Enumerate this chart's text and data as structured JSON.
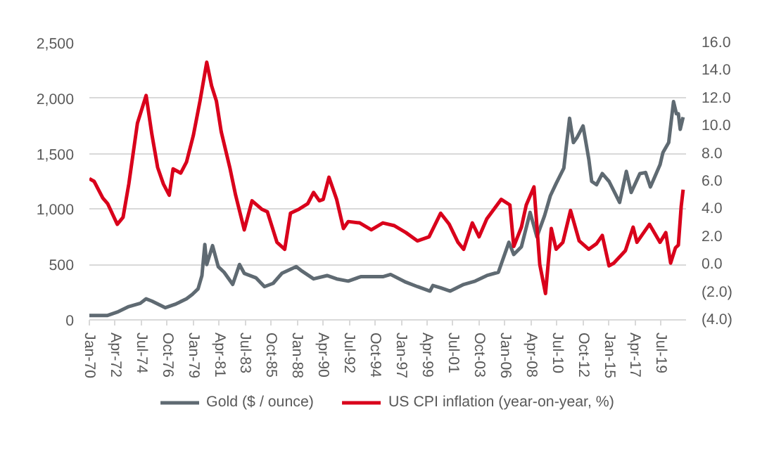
{
  "chart_data": {
    "type": "line",
    "legend": "bottom",
    "grid": "y",
    "line_style": "solid",
    "xlim": [
      "1970-01-01",
      "2021-09-01"
    ],
    "xticks": [
      {
        "value": "1970-01",
        "label": "Jan-70"
      },
      {
        "value": "1972-04",
        "label": "Apr-72"
      },
      {
        "value": "1974-07",
        "label": "Jul-74"
      },
      {
        "value": "1976-10",
        "label": "Oct-76"
      },
      {
        "value": "1979-01",
        "label": "Jan-79"
      },
      {
        "value": "1981-04",
        "label": "Apr-81"
      },
      {
        "value": "1983-07",
        "label": "Jul-83"
      },
      {
        "value": "1985-10",
        "label": "Oct-85"
      },
      {
        "value": "1988-01",
        "label": "Jan-88"
      },
      {
        "value": "1990-04",
        "label": "Apr-90"
      },
      {
        "value": "1992-07",
        "label": "Jul-92"
      },
      {
        "value": "1994-10",
        "label": "Oct-94"
      },
      {
        "value": "1997-01",
        "label": "Jan-97"
      },
      {
        "value": "1999-04",
        "label": "Apr-99"
      },
      {
        "value": "2001-07",
        "label": "Jul-01"
      },
      {
        "value": "2003-10",
        "label": "Oct-03"
      },
      {
        "value": "2006-01",
        "label": "Jan-06"
      },
      {
        "value": "2008-04",
        "label": "Apr-08"
      },
      {
        "value": "2010-07",
        "label": "Jul-10"
      },
      {
        "value": "2012-10",
        "label": "Oct-12"
      },
      {
        "value": "2015-01",
        "label": "Jan-15"
      },
      {
        "value": "2017-04",
        "label": "Apr-17"
      },
      {
        "value": "2019-07",
        "label": "Jul-19"
      }
    ],
    "ylim": [
      0,
      2500
    ],
    "yticks": [
      0,
      500,
      {
        "value": 1000,
        "label": "1,000"
      },
      {
        "value": 1500,
        "label": "1,500"
      },
      {
        "value": 2000,
        "label": "2,000"
      },
      {
        "value": 2500,
        "label": "2,500"
      }
    ],
    "y2lim": [
      -4,
      16
    ],
    "y2ticks": [
      {
        "value": -4,
        "label": "(4.0)"
      },
      {
        "value": -2,
        "label": "(2.0)"
      },
      {
        "value": 0,
        "label": "0.0"
      },
      {
        "value": 2,
        "label": "2.0"
      },
      {
        "value": 4,
        "label": "4.0"
      },
      {
        "value": 6,
        "label": "6.0"
      },
      {
        "value": 8,
        "label": "8.0"
      },
      {
        "value": 10,
        "label": "10.0"
      },
      {
        "value": 12,
        "label": "12.0"
      },
      {
        "value": 14,
        "label": "14.0"
      },
      {
        "value": 16,
        "label": "16.0"
      }
    ],
    "series": [
      {
        "name": "Gold ($ / ounce)",
        "color": "#5f6a72",
        "x": [
          "1970-01",
          "1971-08",
          "1972-06",
          "1973-06",
          "1974-06",
          "1974-12",
          "1975-06",
          "1976-08",
          "1977-06",
          "1978-06",
          "1978-12",
          "1979-06",
          "1979-10",
          "1980-01",
          "1980-03",
          "1980-09",
          "1981-03",
          "1981-09",
          "1982-06",
          "1983-01",
          "1983-06",
          "1984-06",
          "1985-03",
          "1985-12",
          "1986-09",
          "1987-12",
          "1988-06",
          "1989-06",
          "1990-08",
          "1991-06",
          "1992-06",
          "1993-07",
          "1994-06",
          "1995-06",
          "1996-02",
          "1997-06",
          "1998-06",
          "1999-07",
          "1999-10",
          "2000-06",
          "2001-04",
          "2002-06",
          "2003-06",
          "2004-06",
          "2005-06",
          "2006-05",
          "2006-10",
          "2007-06",
          "2008-03",
          "2008-10",
          "2009-06",
          "2009-12",
          "2010-06",
          "2011-02",
          "2011-08",
          "2011-12",
          "2012-04",
          "2012-10",
          "2013-04",
          "2013-07",
          "2013-12",
          "2014-06",
          "2015-01",
          "2015-12",
          "2016-07",
          "2016-12",
          "2017-09",
          "2018-03",
          "2018-08",
          "2019-06",
          "2019-09",
          "2020-03",
          "2020-08",
          "2020-11",
          "2021-01",
          "2021-03",
          "2021-06"
        ],
        "values": [
          40,
          40,
          70,
          120,
          150,
          190,
          170,
          110,
          140,
          190,
          230,
          280,
          400,
          680,
          500,
          670,
          480,
          430,
          320,
          500,
          420,
          380,
          300,
          330,
          420,
          480,
          440,
          370,
          400,
          370,
          350,
          390,
          390,
          390,
          410,
          340,
          300,
          260,
          310,
          290,
          260,
          320,
          350,
          400,
          430,
          700,
          590,
          660,
          970,
          750,
          940,
          1120,
          1230,
          1370,
          1820,
          1600,
          1650,
          1750,
          1450,
          1250,
          1220,
          1320,
          1250,
          1060,
          1340,
          1150,
          1320,
          1330,
          1200,
          1400,
          1510,
          1600,
          1970,
          1860,
          1860,
          1720,
          1830
        ]
      },
      {
        "name": "US CPI inflation (year-on-year, %)",
        "color": "#d9001b",
        "axis": "y2",
        "x": [
          "1970-01",
          "1970-06",
          "1971-03",
          "1971-08",
          "1972-06",
          "1972-12",
          "1973-06",
          "1974-03",
          "1974-12",
          "1975-06",
          "1975-12",
          "1976-06",
          "1976-12",
          "1977-04",
          "1977-12",
          "1978-06",
          "1979-01",
          "1979-08",
          "1980-03",
          "1980-08",
          "1981-01",
          "1981-06",
          "1982-03",
          "1982-09",
          "1983-06",
          "1984-02",
          "1984-12",
          "1985-06",
          "1986-04",
          "1986-12",
          "1987-06",
          "1988-03",
          "1988-12",
          "1989-06",
          "1989-12",
          "1990-04",
          "1990-10",
          "1991-06",
          "1992-01",
          "1992-06",
          "1993-06",
          "1994-06",
          "1995-06",
          "1996-06",
          "1997-06",
          "1998-06",
          "1999-06",
          "2000-06",
          "2001-03",
          "2001-12",
          "2002-06",
          "2003-03",
          "2003-10",
          "2004-06",
          "2005-09",
          "2006-06",
          "2006-10",
          "2007-06",
          "2007-11",
          "2008-07",
          "2009-01",
          "2009-07",
          "2010-01",
          "2010-06",
          "2011-01",
          "2011-09",
          "2012-06",
          "2013-04",
          "2013-12",
          "2014-06",
          "2015-01",
          "2015-06",
          "2016-06",
          "2017-02",
          "2017-06",
          "2018-07",
          "2019-06",
          "2019-12",
          "2020-05",
          "2020-10",
          "2021-01",
          "2021-04",
          "2021-06"
        ],
        "values": [
          6.2,
          6.0,
          4.8,
          4.4,
          2.9,
          3.4,
          5.8,
          10.2,
          12.2,
          9.4,
          7.0,
          5.8,
          5.0,
          6.9,
          6.6,
          7.4,
          9.3,
          11.8,
          14.6,
          12.9,
          11.8,
          9.6,
          7.0,
          5.0,
          2.5,
          4.6,
          4.0,
          3.8,
          1.6,
          1.1,
          3.7,
          4.0,
          4.4,
          5.2,
          4.6,
          4.7,
          6.3,
          4.7,
          2.6,
          3.1,
          3.0,
          2.5,
          3.0,
          2.8,
          2.3,
          1.7,
          2.0,
          3.7,
          2.9,
          1.6,
          1.1,
          3.0,
          2.0,
          3.3,
          4.7,
          4.3,
          1.3,
          2.7,
          4.3,
          5.6,
          0.0,
          -2.1,
          2.6,
          1.1,
          1.6,
          3.9,
          1.7,
          1.1,
          1.5,
          2.1,
          -0.1,
          0.1,
          1.0,
          2.7,
          1.6,
          2.9,
          1.6,
          2.3,
          0.1,
          1.2,
          1.4,
          4.2,
          5.4
        ]
      }
    ]
  }
}
